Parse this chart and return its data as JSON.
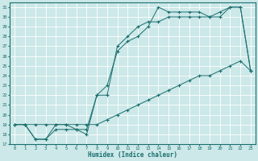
{
  "xlabel": "Humidex (Indice chaleur)",
  "xlim": [
    -0.5,
    23.5
  ],
  "ylim": [
    17,
    31.5
  ],
  "yticks": [
    17,
    18,
    19,
    20,
    21,
    22,
    23,
    24,
    25,
    26,
    27,
    28,
    29,
    30,
    31
  ],
  "xticks": [
    0,
    1,
    2,
    3,
    4,
    5,
    6,
    7,
    8,
    9,
    10,
    11,
    12,
    13,
    14,
    15,
    16,
    17,
    18,
    19,
    20,
    21,
    22,
    23
  ],
  "bg_color": "#cce8e8",
  "grid_color": "#b0d8d8",
  "line_color": "#1a6e6e",
  "line1_x": [
    0,
    1,
    2,
    3,
    4,
    5,
    6,
    7,
    8,
    9,
    10,
    11,
    12,
    13,
    14,
    15,
    16,
    17,
    18,
    19,
    20,
    21,
    22,
    23
  ],
  "line1_y": [
    19,
    19,
    17.5,
    17.5,
    18.5,
    18.5,
    18.5,
    18.5,
    22,
    23,
    26.5,
    27.5,
    28,
    29,
    31,
    30.5,
    30.5,
    30.5,
    30.5,
    30,
    30.5,
    31,
    31,
    24.5
  ],
  "line2_x": [
    0,
    1,
    2,
    3,
    4,
    5,
    6,
    7,
    8,
    9,
    10,
    11,
    12,
    13,
    14,
    15,
    16,
    17,
    18,
    19,
    20,
    21,
    22,
    23
  ],
  "line2_y": [
    19,
    19,
    17.5,
    17.5,
    19,
    19,
    18.5,
    18,
    22,
    22,
    27,
    28,
    29,
    29.5,
    29.5,
    30,
    30,
    30,
    30,
    30,
    30,
    31,
    31,
    24.5
  ],
  "line3_x": [
    0,
    1,
    2,
    3,
    4,
    5,
    6,
    7,
    8,
    9,
    10,
    11,
    12,
    13,
    14,
    15,
    16,
    17,
    18,
    19,
    20,
    21,
    22,
    23
  ],
  "line3_y": [
    19,
    19,
    19,
    19,
    19,
    19,
    19,
    19,
    19,
    19.5,
    20,
    20.5,
    21,
    21.5,
    22,
    22.5,
    23,
    23.5,
    24,
    24,
    24.5,
    25,
    25.5,
    24.5
  ]
}
